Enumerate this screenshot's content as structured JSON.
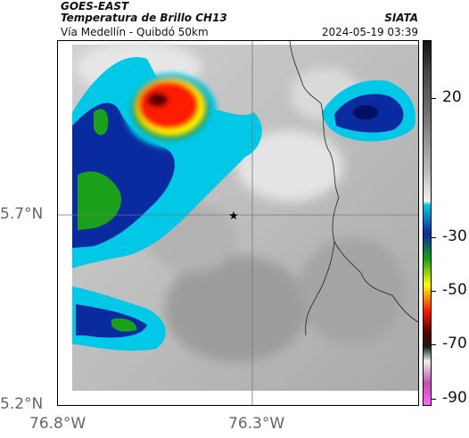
{
  "header": {
    "satellite": "GOES-EAST",
    "product": "Temperatura de Brillo CH13",
    "route": "Vía Medellín - Quibdó 50km",
    "org": "SIATA",
    "datetime": "2024-05-19 03:39"
  },
  "axes": {
    "lat_ticks": [
      "5.7°N",
      "5.2°N"
    ],
    "lon_ticks": [
      "76.8°W",
      "76.3°W"
    ]
  },
  "colorbar": {
    "labels": [
      "20",
      "-30",
      "-50",
      "-70",
      "-90"
    ],
    "colors": {
      "warm_top": "#111111",
      "gray_mid": "#9a9a9a",
      "gray_light": "#e8e8e8",
      "cyan": "#00c8e6",
      "blue": "#0a2aa0",
      "green": "#1aa01a",
      "yellow": "#ffff00",
      "red": "#ff1a00",
      "dark_red": "#5a0000",
      "magenta": "#c050b0"
    }
  },
  "map": {
    "marker_icon": "star-icon"
  }
}
